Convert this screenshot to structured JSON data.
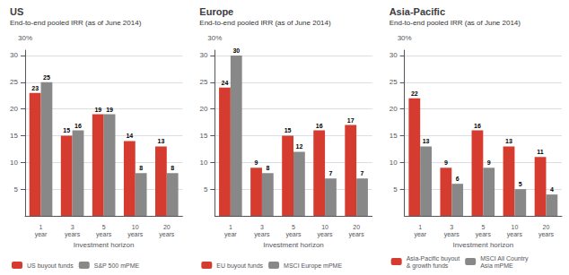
{
  "chart_data": [
    {
      "type": "bar",
      "title": "US",
      "subtitle": "End-to-end pooled IRR (as of June 2014)",
      "annotations": [
        "30%"
      ],
      "xlabel": "Investment horizon",
      "categories": [
        "1\nyear",
        "3\nyears",
        "5\nyears",
        "10\nyears",
        "20\nyears"
      ],
      "series": [
        {
          "name": "US buyout funds",
          "color": "#d63b2f",
          "values": [
            23,
            15,
            19,
            14,
            13
          ]
        },
        {
          "name": "S&P 500 mPME",
          "color": "#888888",
          "values": [
            25,
            16,
            19,
            8,
            8
          ]
        }
      ],
      "ylim": [
        0,
        31
      ],
      "yticks": [
        5,
        10,
        15,
        20,
        25,
        30
      ],
      "grid": true,
      "data_labels": true,
      "legend": "bottom"
    },
    {
      "type": "bar",
      "title": "Europe",
      "subtitle": "End-to-end pooled IRR (as of June 2014)",
      "annotations": [
        "30%"
      ],
      "xlabel": "Investment horizon",
      "categories": [
        "1\nyear",
        "3\nyears",
        "5\nyears",
        "10\nyears",
        "20\nyears"
      ],
      "series": [
        {
          "name": "EU buyout funds",
          "color": "#d63b2f",
          "values": [
            24,
            9,
            15,
            16,
            17
          ]
        },
        {
          "name": "MSCI Europe mPME",
          "color": "#888888",
          "values": [
            30,
            8,
            12,
            7,
            7
          ]
        }
      ],
      "ylim": [
        0,
        31
      ],
      "yticks": [
        5,
        10,
        15,
        20,
        25,
        30
      ],
      "grid": true,
      "data_labels": true,
      "legend": "bottom"
    },
    {
      "type": "bar",
      "title": "Asia-Pacific",
      "subtitle": "End-to-end pooled IRR (as of June 2014)",
      "annotations": [
        "30%"
      ],
      "xlabel": "Investment horizon",
      "categories": [
        "1\nyear",
        "3\nyears",
        "5\nyears",
        "10\nyears",
        "20\nyears"
      ],
      "series": [
        {
          "name": "Asia-Pacific buyout\n& growth funds",
          "color": "#d63b2f",
          "values": [
            22,
            9,
            16,
            13,
            11
          ]
        },
        {
          "name": "MSCI All Country\nAsia mPME",
          "color": "#888888",
          "values": [
            13,
            6,
            9,
            5,
            4
          ]
        }
      ],
      "ylim": [
        0,
        31
      ],
      "yticks": [
        5,
        10,
        15,
        20,
        25,
        30
      ],
      "grid": true,
      "data_labels": true,
      "legend": "bottom"
    }
  ]
}
